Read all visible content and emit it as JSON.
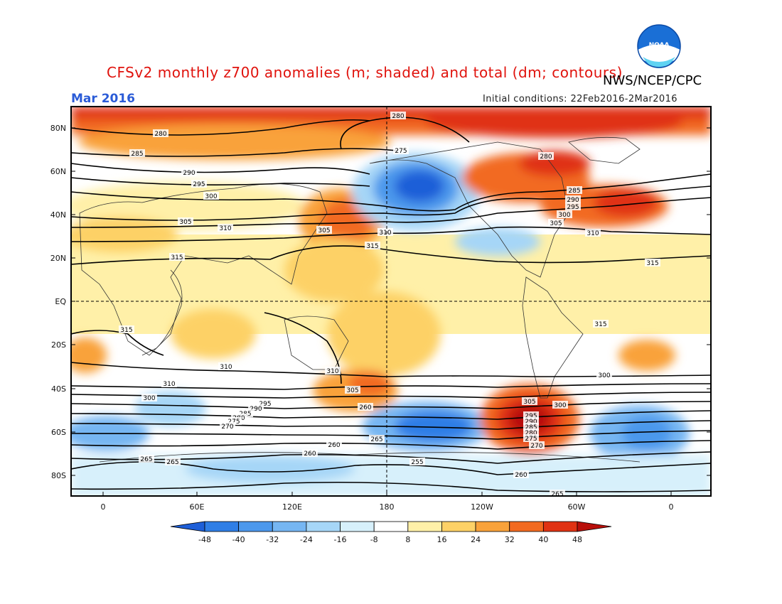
{
  "header": {
    "title": "CFSv2 monthly z700 anomalies (m; shaded) and total (dm; contours)",
    "org": "NWS/NCEP/CPC",
    "month": "Mar 2016",
    "initial_conditions": "Initial conditions: 22Feb2016-2Mar2016"
  },
  "logo": {
    "text": "NOAA"
  },
  "axes": {
    "lat_labels": [
      "80N",
      "60N",
      "40N",
      "20N",
      "EQ",
      "20S",
      "40S",
      "60S",
      "80S"
    ],
    "lon_labels": [
      "0",
      "60E",
      "120E",
      "180",
      "120W",
      "60W",
      "0"
    ]
  },
  "colorbar": {
    "colors": [
      "#1e5fd8",
      "#2f7ee6",
      "#4c98ec",
      "#76b6f2",
      "#a6d6f7",
      "#d7f0fb",
      "#ffffff",
      "#fff0a8",
      "#fdd166",
      "#f9a23a",
      "#f26a20",
      "#e03213",
      "#b80f0a"
    ],
    "labels": [
      "-48",
      "-40",
      "-32",
      "-24",
      "-16",
      "-8",
      "8",
      "16",
      "24",
      "32",
      "40",
      "48"
    ]
  },
  "contour_labels": [
    "280",
    "280",
    "275",
    "280",
    "285",
    "290",
    "295",
    "300",
    "305",
    "310",
    "315",
    "305",
    "310",
    "315",
    "285",
    "290",
    "295",
    "300",
    "305",
    "310",
    "315",
    "315",
    "310",
    "310",
    "305",
    "300",
    "295",
    "290",
    "285",
    "280",
    "275",
    "270",
    "265",
    "260",
    "255",
    "265",
    "260",
    "265",
    "260",
    "305",
    "300",
    "295",
    "290",
    "285",
    "280",
    "275",
    "270",
    "265",
    "260",
    "300",
    "310",
    "315"
  ]
}
